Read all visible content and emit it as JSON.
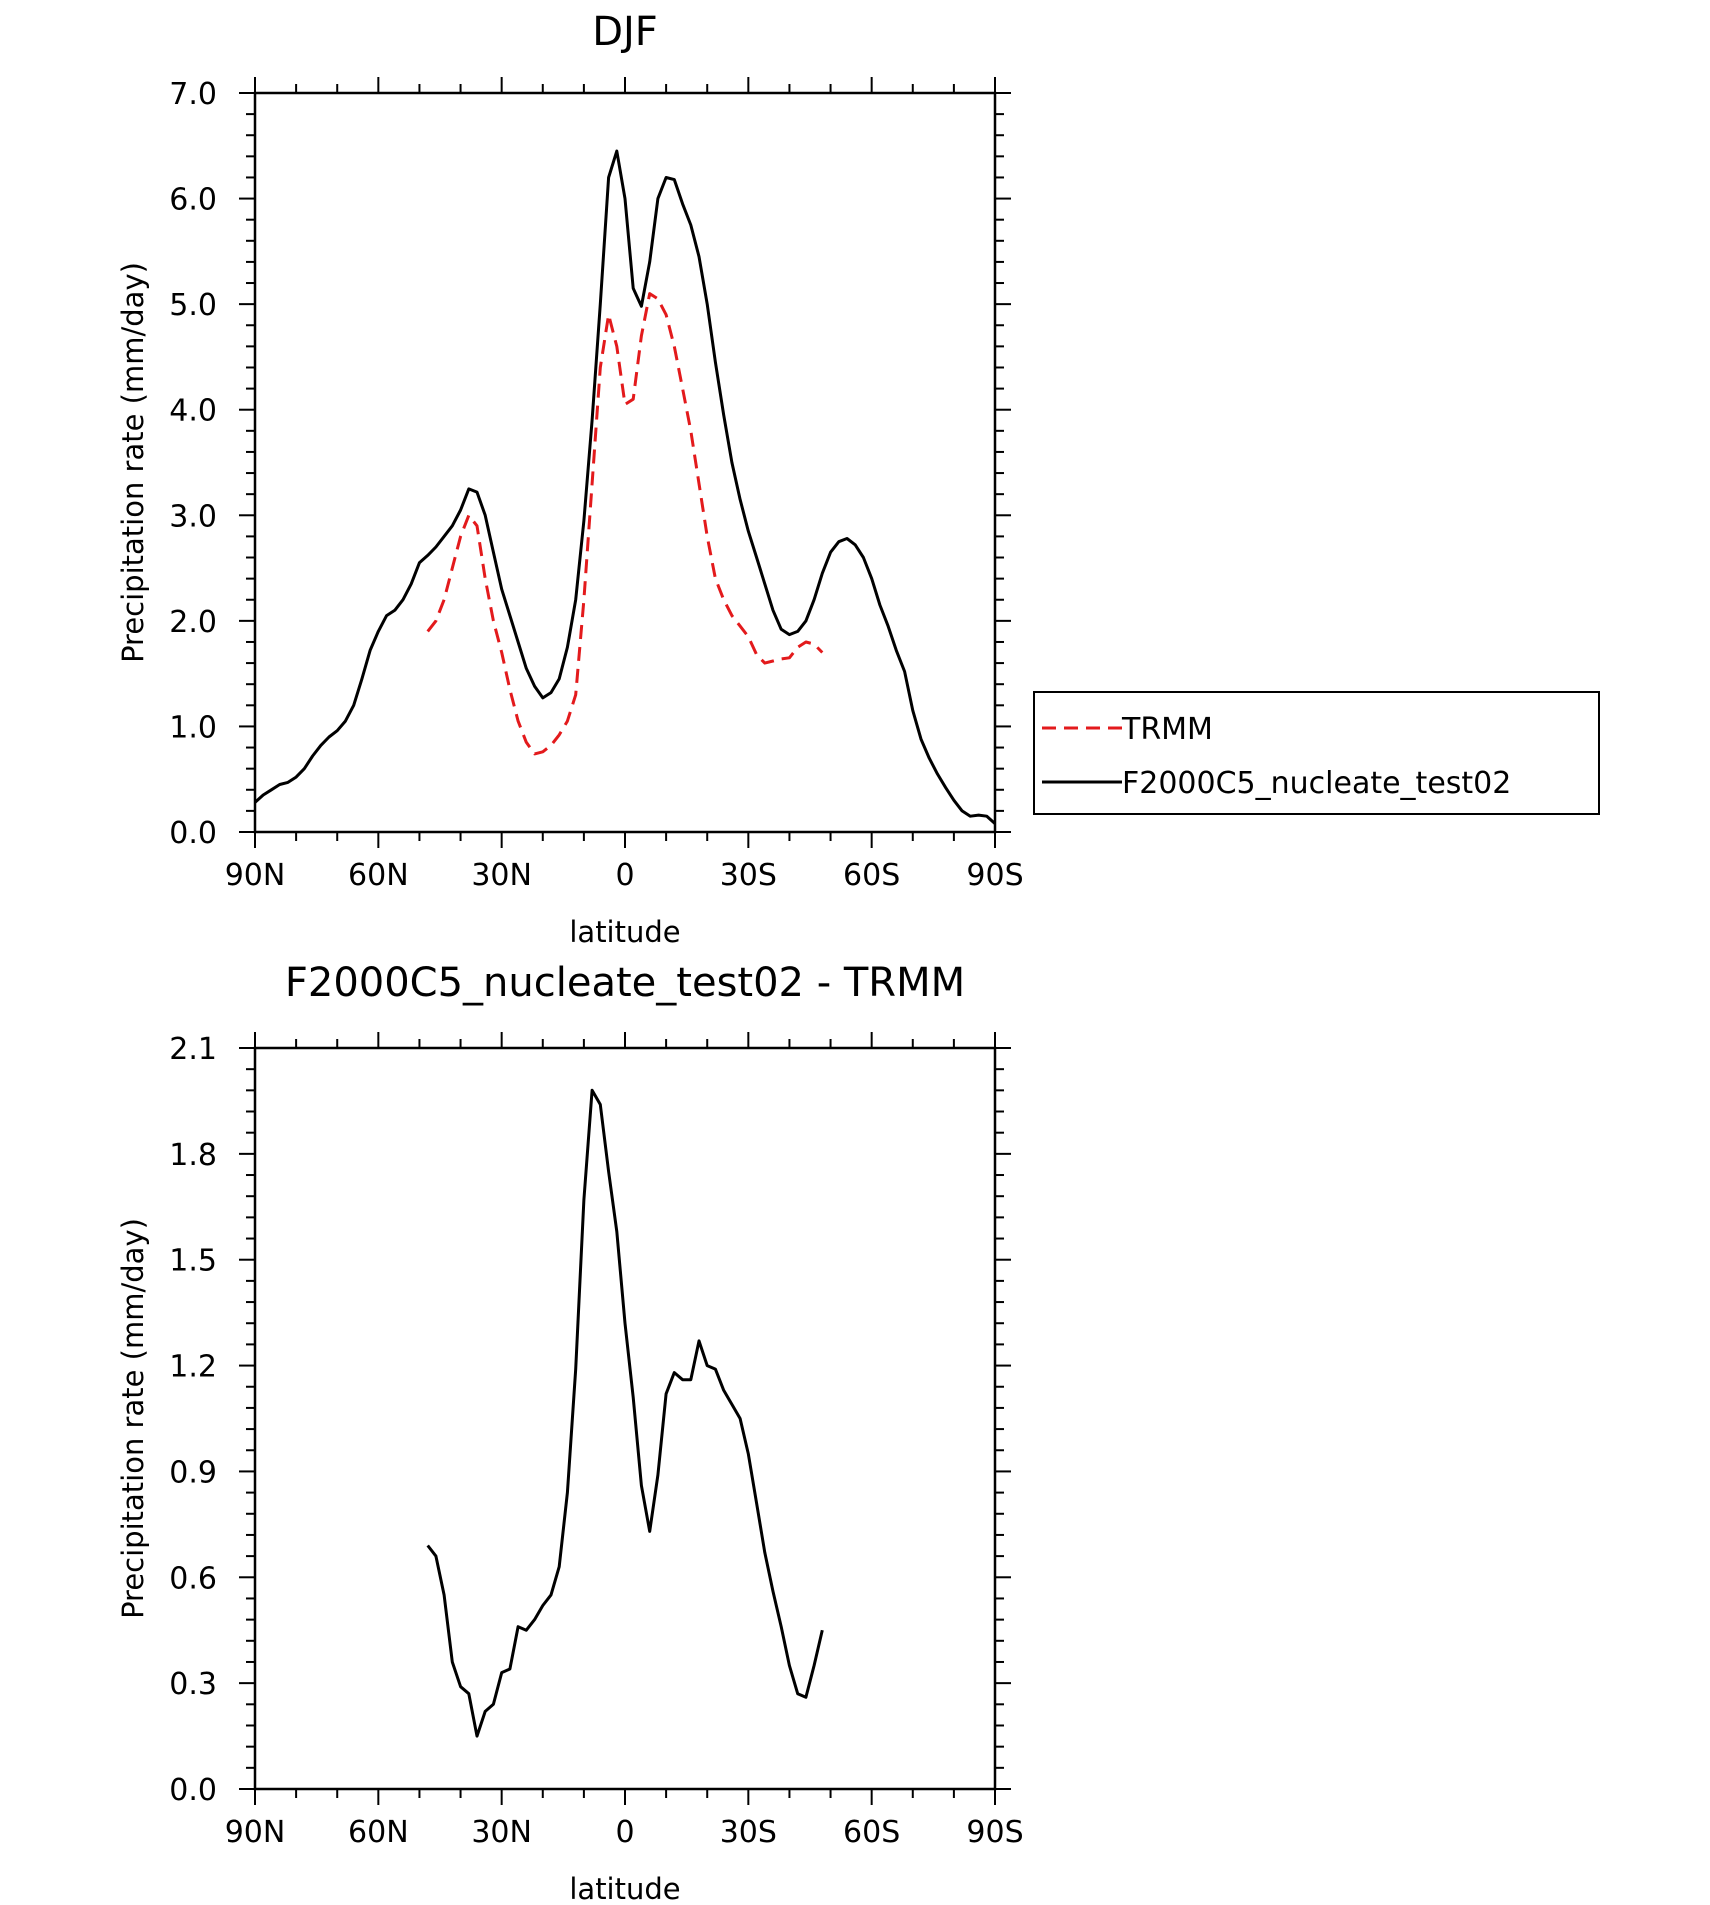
{
  "chart_data": [
    {
      "type": "line",
      "title": "DJF",
      "xlabel": "latitude",
      "ylabel": "Precipitation rate (mm/day)",
      "xlim": [
        90,
        -90
      ],
      "ylim": [
        0.0,
        7.0
      ],
      "x_ticks": [
        {
          "value": 90,
          "label": "90N"
        },
        {
          "value": 60,
          "label": "60N"
        },
        {
          "value": 30,
          "label": "30N"
        },
        {
          "value": 0,
          "label": "0"
        },
        {
          "value": -30,
          "label": "30S"
        },
        {
          "value": -60,
          "label": "60S"
        },
        {
          "value": -90,
          "label": "90S"
        }
      ],
      "y_ticks": [
        {
          "value": 0,
          "label": "0.0"
        },
        {
          "value": 1,
          "label": "1.0"
        },
        {
          "value": 2,
          "label": "2.0"
        },
        {
          "value": 3,
          "label": "3.0"
        },
        {
          "value": 4,
          "label": "4.0"
        },
        {
          "value": 5,
          "label": "5.0"
        },
        {
          "value": 6,
          "label": "6.0"
        },
        {
          "value": 7,
          "label": "7.0"
        }
      ],
      "legend": {
        "placement": "right",
        "entries": [
          {
            "name": "TRMM",
            "color": "#e31a1c",
            "dash": true
          },
          {
            "name": "F2000C5_nucleate_test02",
            "color": "#000000",
            "dash": false
          }
        ]
      },
      "series": [
        {
          "name": "TRMM",
          "color": "#e31a1c",
          "dash": true,
          "x": [
            48,
            46,
            44,
            42,
            40,
            38,
            36,
            34,
            32,
            30,
            28,
            26,
            24,
            22,
            20,
            18,
            16,
            14,
            12,
            10,
            8,
            6,
            4,
            2,
            0,
            -2,
            -4,
            -6,
            -8,
            -10,
            -12,
            -14,
            -16,
            -18,
            -20,
            -22,
            -24,
            -26,
            -28,
            -30,
            -32,
            -34,
            -36,
            -38,
            -40,
            -42,
            -44,
            -46,
            -48
          ],
          "y": [
            1.9,
            2.0,
            2.2,
            2.5,
            2.8,
            3.0,
            2.9,
            2.4,
            2.0,
            1.7,
            1.35,
            1.05,
            0.85,
            0.74,
            0.76,
            0.82,
            0.92,
            1.05,
            1.3,
            2.2,
            3.3,
            4.4,
            4.9,
            4.6,
            4.05,
            4.1,
            4.7,
            5.1,
            5.05,
            4.9,
            4.6,
            4.2,
            3.8,
            3.3,
            2.8,
            2.4,
            2.2,
            2.05,
            1.95,
            1.85,
            1.68,
            1.6,
            1.62,
            1.64,
            1.65,
            1.75,
            1.8,
            1.78,
            1.7
          ]
        },
        {
          "name": "F2000C5_nucleate_test02",
          "color": "#000000",
          "dash": false,
          "x": [
            90,
            88,
            86,
            84,
            82,
            80,
            78,
            76,
            74,
            72,
            70,
            68,
            66,
            64,
            62,
            60,
            58,
            56,
            54,
            52,
            50,
            48,
            46,
            44,
            42,
            40,
            38,
            36,
            34,
            32,
            30,
            28,
            26,
            24,
            22,
            20,
            18,
            16,
            14,
            12,
            10,
            8,
            6,
            4,
            2,
            0,
            -2,
            -4,
            -6,
            -8,
            -10,
            -12,
            -14,
            -16,
            -18,
            -20,
            -22,
            -24,
            -26,
            -28,
            -30,
            -32,
            -34,
            -36,
            -38,
            -40,
            -42,
            -44,
            -46,
            -48,
            -50,
            -52,
            -54,
            -56,
            -58,
            -60,
            -62,
            -64,
            -66,
            -68,
            -70,
            -72,
            -74,
            -76,
            -78,
            -80,
            -82,
            -84,
            -86,
            -88,
            -90
          ],
          "y": [
            0.28,
            0.35,
            0.4,
            0.45,
            0.47,
            0.52,
            0.6,
            0.72,
            0.82,
            0.9,
            0.96,
            1.05,
            1.2,
            1.45,
            1.72,
            1.9,
            2.05,
            2.1,
            2.2,
            2.35,
            2.55,
            2.62,
            2.7,
            2.8,
            2.9,
            3.05,
            3.25,
            3.22,
            3.0,
            2.65,
            2.3,
            2.05,
            1.8,
            1.55,
            1.38,
            1.27,
            1.32,
            1.45,
            1.75,
            2.2,
            2.95,
            3.9,
            5.0,
            6.2,
            6.45,
            6.0,
            5.15,
            4.98,
            5.4,
            6.0,
            6.2,
            6.18,
            5.95,
            5.75,
            5.45,
            5.0,
            4.45,
            3.95,
            3.5,
            3.15,
            2.85,
            2.6,
            2.35,
            2.1,
            1.92,
            1.87,
            1.9,
            2.0,
            2.2,
            2.45,
            2.65,
            2.75,
            2.78,
            2.72,
            2.6,
            2.4,
            2.15,
            1.95,
            1.72,
            1.52,
            1.15,
            0.88,
            0.7,
            0.55,
            0.42,
            0.3,
            0.2,
            0.15,
            0.16,
            0.15,
            0.08
          ]
        }
      ]
    },
    {
      "type": "line",
      "title": "F2000C5_nucleate_test02 - TRMM",
      "xlabel": "latitude",
      "ylabel": "Precipitation rate (mm/day)",
      "xlim": [
        90,
        -90
      ],
      "ylim": [
        0.0,
        2.1
      ],
      "x_ticks": [
        {
          "value": 90,
          "label": "90N"
        },
        {
          "value": 60,
          "label": "60N"
        },
        {
          "value": 30,
          "label": "30N"
        },
        {
          "value": 0,
          "label": "0"
        },
        {
          "value": -30,
          "label": "30S"
        },
        {
          "value": -60,
          "label": "60S"
        },
        {
          "value": -90,
          "label": "90S"
        }
      ],
      "y_ticks": [
        {
          "value": 0.0,
          "label": "0.0"
        },
        {
          "value": 0.3,
          "label": "0.3"
        },
        {
          "value": 0.6,
          "label": "0.6"
        },
        {
          "value": 0.9,
          "label": "0.9"
        },
        {
          "value": 1.2,
          "label": "1.2"
        },
        {
          "value": 1.5,
          "label": "1.5"
        },
        {
          "value": 1.8,
          "label": "1.8"
        },
        {
          "value": 2.1,
          "label": "2.1"
        }
      ],
      "series": [
        {
          "color": "#000000",
          "dash": false,
          "x": [
            48,
            46,
            44,
            42,
            40,
            38,
            36,
            34,
            32,
            30,
            28,
            26,
            24,
            22,
            20,
            18,
            16,
            14,
            12,
            10,
            8,
            6,
            4,
            2,
            0,
            -2,
            -4,
            -6,
            -8,
            -10,
            -12,
            -14,
            -16,
            -18,
            -20,
            -22,
            -24,
            -26,
            -28,
            -30,
            -32,
            -34,
            -36,
            -38,
            -40,
            -42,
            -44,
            -46,
            -48
          ],
          "y": [
            0.69,
            0.66,
            0.55,
            0.36,
            0.29,
            0.27,
            0.15,
            0.22,
            0.24,
            0.33,
            0.34,
            0.46,
            0.45,
            0.48,
            0.52,
            0.55,
            0.63,
            0.84,
            1.19,
            1.67,
            1.98,
            1.94,
            1.75,
            1.58,
            1.32,
            1.11,
            0.86,
            0.73,
            0.89,
            1.12,
            1.18,
            1.16,
            1.16,
            1.27,
            1.2,
            1.19,
            1.13,
            1.09,
            1.05,
            0.95,
            0.81,
            0.67,
            0.56,
            0.46,
            0.35,
            0.27,
            0.26,
            0.35,
            0.45
          ]
        }
      ]
    }
  ]
}
